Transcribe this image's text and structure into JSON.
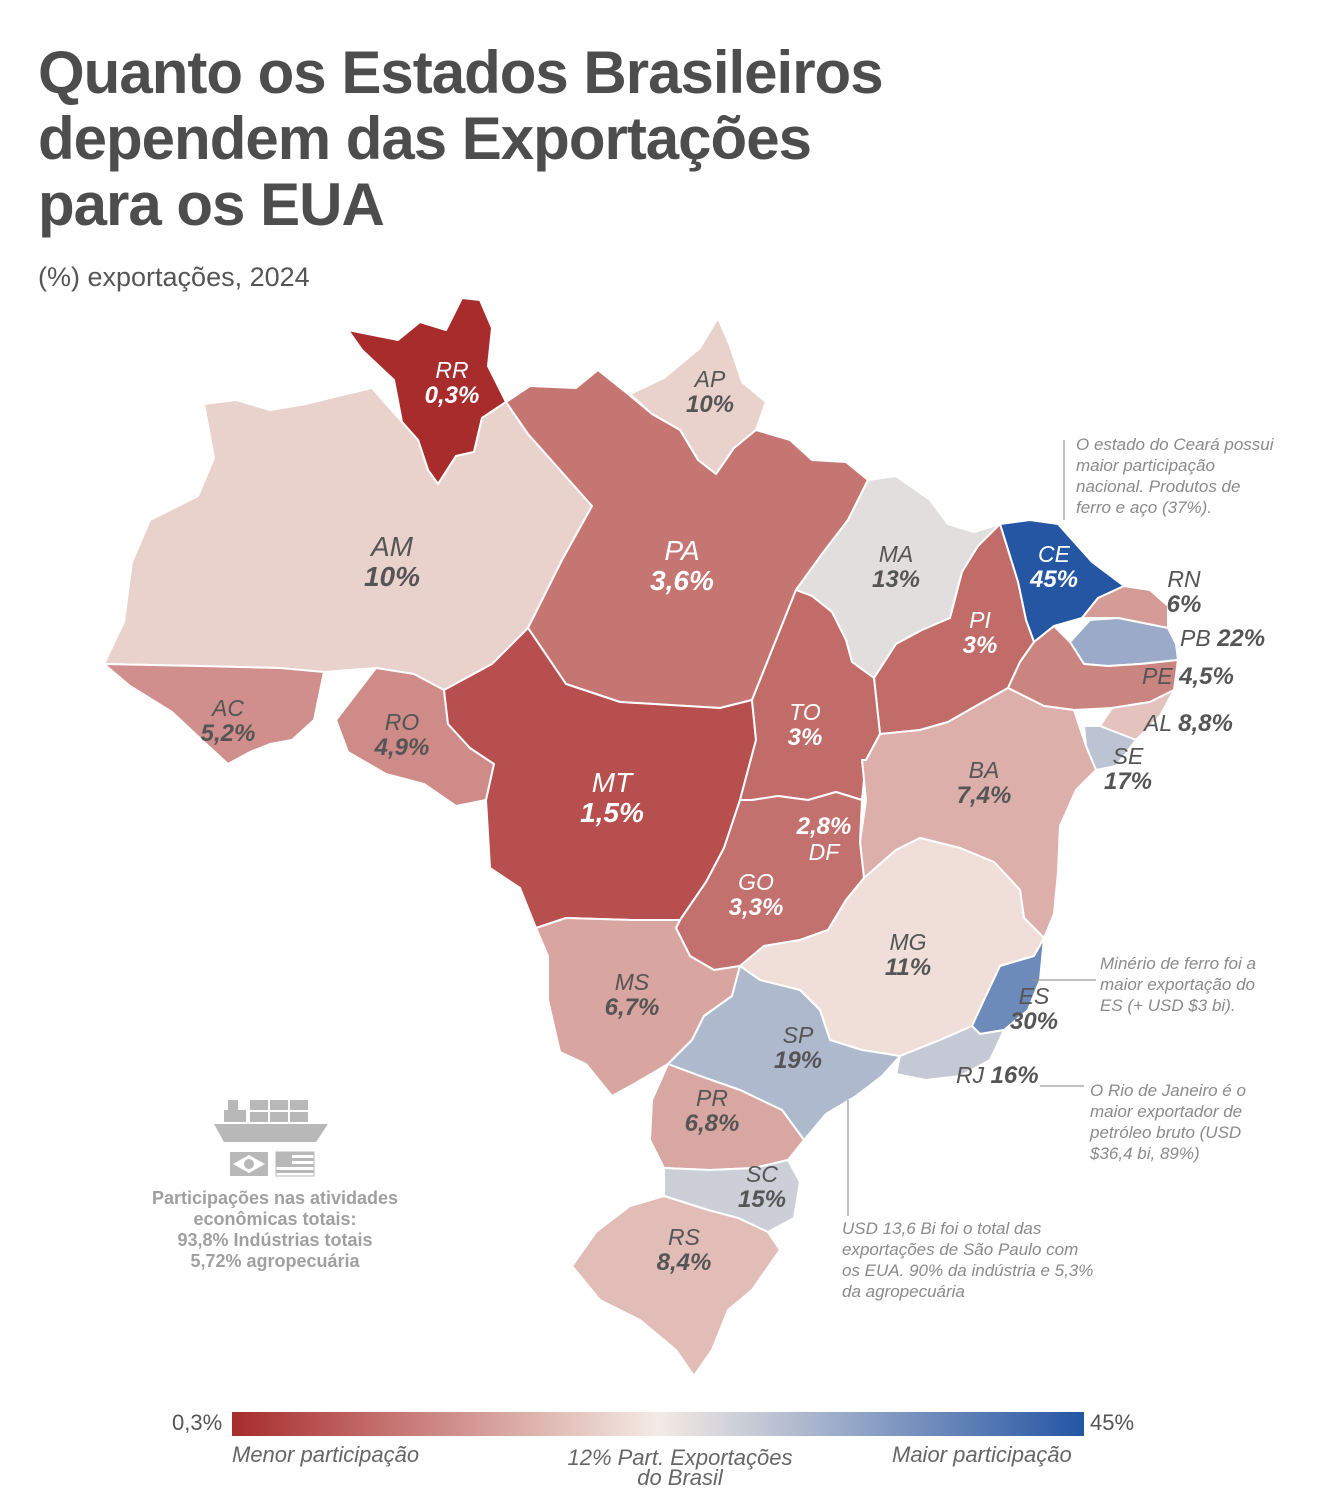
{
  "title_lines": [
    "Quanto os Estados Brasileiros",
    "dependem das Exportações",
    "para os EUA"
  ],
  "subtitle": "(%) exportações, 2024",
  "colors": {
    "low": "#a82c2c",
    "mid": "#f4ebe4",
    "high": "#2456a4",
    "label_dark_bg": "#ffffff",
    "label_light_bg": "#555555"
  },
  "states": [
    {
      "code": "RR",
      "value": "0,3%",
      "pct": 0.3
    },
    {
      "code": "AP",
      "value": "10%",
      "pct": 10
    },
    {
      "code": "AM",
      "value": "10%",
      "pct": 10
    },
    {
      "code": "PA",
      "value": "3,6%",
      "pct": 3.6
    },
    {
      "code": "MA",
      "value": "13%",
      "pct": 13
    },
    {
      "code": "CE",
      "value": "45%",
      "pct": 45
    },
    {
      "code": "RN",
      "value": "6%",
      "pct": 6
    },
    {
      "code": "PB",
      "value": "22%",
      "pct": 22
    },
    {
      "code": "PI",
      "value": "3%",
      "pct": 3
    },
    {
      "code": "PE",
      "value": "4,5%",
      "pct": 4.5
    },
    {
      "code": "AL",
      "value": "8,8%",
      "pct": 8.8
    },
    {
      "code": "SE",
      "value": "17%",
      "pct": 17
    },
    {
      "code": "AC",
      "value": "5,2%",
      "pct": 5.2
    },
    {
      "code": "RO",
      "value": "4,9%",
      "pct": 4.9
    },
    {
      "code": "MT",
      "value": "1,5%",
      "pct": 1.5
    },
    {
      "code": "TO",
      "value": "3%",
      "pct": 3
    },
    {
      "code": "BA",
      "value": "7,4%",
      "pct": 7.4
    },
    {
      "code": "DF",
      "value": "2,8%",
      "pct": 2.8
    },
    {
      "code": "GO",
      "value": "3,3%",
      "pct": 3.3
    },
    {
      "code": "MG",
      "value": "11%",
      "pct": 11
    },
    {
      "code": "ES",
      "value": "30%",
      "pct": 30
    },
    {
      "code": "MS",
      "value": "6,7%",
      "pct": 6.7
    },
    {
      "code": "SP",
      "value": "19%",
      "pct": 19
    },
    {
      "code": "RJ",
      "value": "16%",
      "pct": 16
    },
    {
      "code": "PR",
      "value": "6,8%",
      "pct": 6.8
    },
    {
      "code": "SC",
      "value": "15%",
      "pct": 15
    },
    {
      "code": "RS",
      "value": "8,4%",
      "pct": 8.4
    }
  ],
  "notes": {
    "ce": [
      "O estado do Ceará possui",
      "maior participação",
      "nacional. Produtos de",
      "ferro e aço (37%)."
    ],
    "es": [
      "Minério de ferro foi a",
      "maior exportação do",
      "ES (+ USD $3 bi)."
    ],
    "rj": [
      "O Rio de Janeiro é o",
      "maior exportador de",
      "petróleo bruto (USD",
      "$36,4 bi, 89%)"
    ],
    "sp": [
      "USD 13,6 Bi foi o total das",
      "exportações de São Paulo com",
      "os EUA. 90% da indústria e 5,3%",
      "da agropecuária"
    ]
  },
  "side_block": {
    "icon_names": [
      "cargo-ship-icon",
      "brazil-flag-icon",
      "usa-flag-icon"
    ],
    "lines": [
      "Participações nas atividades",
      "econômicas totais:",
      "93,8% Indústrias totais",
      "5,72% agropecuária"
    ]
  },
  "legend": {
    "min_label": "0,3%",
    "max_label": "45%",
    "low_text": "Menor participação",
    "mid_text": [
      "12% Part. Exportações",
      "do Brasil"
    ],
    "high_text": "Maior participação"
  }
}
